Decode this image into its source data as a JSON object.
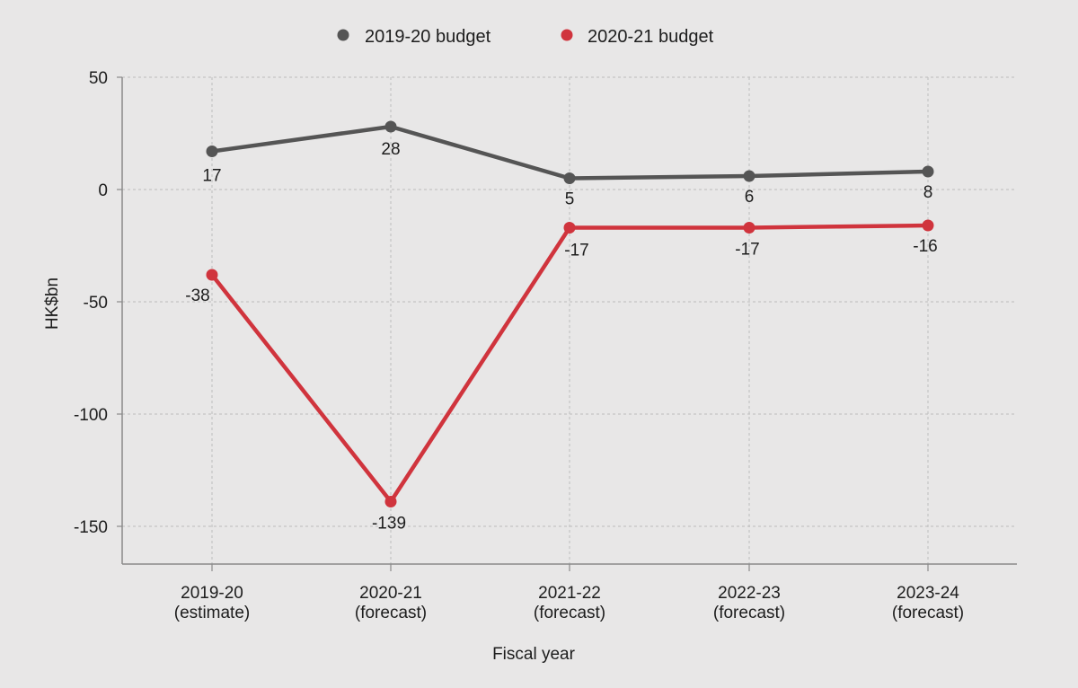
{
  "chart_data": {
    "type": "line",
    "xlabel": "Fiscal year",
    "ylabel": "HK$bn",
    "categories": [
      [
        "2019-20",
        "(estimate)"
      ],
      [
        "2020-21",
        "(forecast)"
      ],
      [
        "2021-22",
        "(forecast)"
      ],
      [
        "2022-23",
        "(forecast)"
      ],
      [
        "2023-24",
        "(forecast)"
      ]
    ],
    "ylim": [
      -165,
      50
    ],
    "yticks": [
      50,
      0,
      -50,
      -100,
      -150
    ],
    "grid": true,
    "legend_position": "top-center",
    "series": [
      {
        "name": "2019-20 budget",
        "color": "#555555",
        "values": [
          17,
          28,
          5,
          6,
          8
        ],
        "labels": [
          "17",
          "28",
          "5",
          "6",
          "8"
        ],
        "label_position": "below"
      },
      {
        "name": "2020-21 budget",
        "color": "#d0343d",
        "values": [
          -38,
          -139,
          -17,
          -17,
          -16
        ],
        "labels": [
          "-38",
          "-139",
          "-17",
          "-17",
          "-16"
        ],
        "label_position": "below"
      }
    ]
  }
}
